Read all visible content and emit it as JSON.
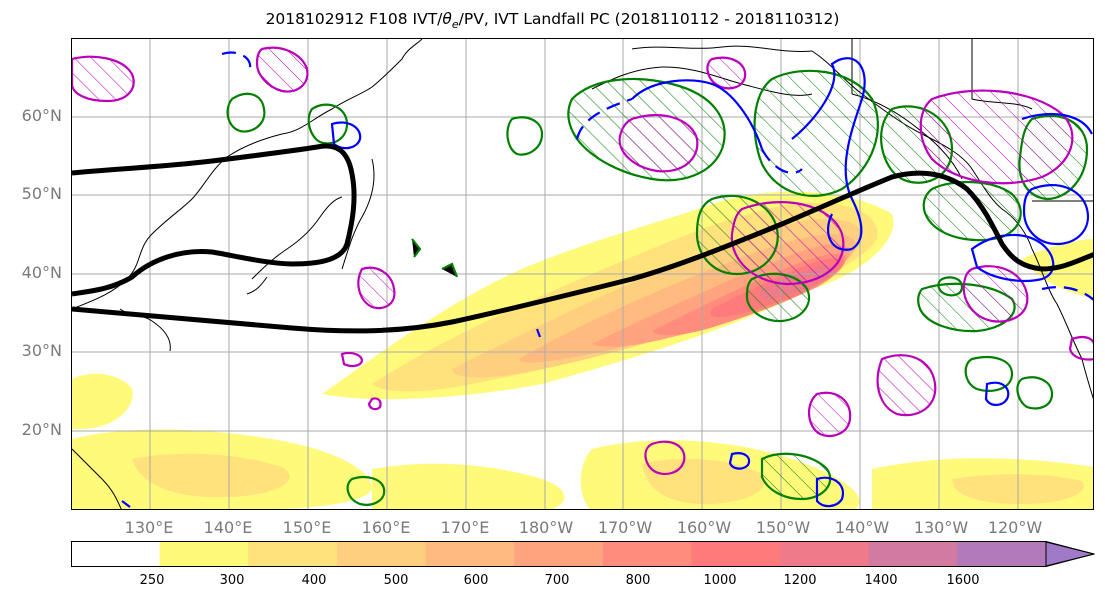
{
  "title": {
    "prefix": "2018102912 F108 IVT/",
    "theta": "θ",
    "theta_sub": "e",
    "suffix": "/PV, IVT Landfall PC (2018110112 - 2018110312)"
  },
  "lat_labels": [
    "60°N",
    "50°N",
    "40°N",
    "30°N",
    "20°N"
  ],
  "lon_labels": [
    "130°E",
    "140°E",
    "150°E",
    "160°E",
    "170°E",
    "180°W",
    "170°W",
    "160°W",
    "150°W",
    "140°W",
    "130°W",
    "120°W"
  ],
  "colorbar": {
    "labels": [
      "250",
      "300",
      "400",
      "500",
      "600",
      "700",
      "800",
      "1000",
      "1200",
      "1400",
      "1600"
    ],
    "colors": [
      "#ffffff",
      "#fffa7a",
      "#ffe27c",
      "#ffcf80",
      "#ffba80",
      "#ffa47e",
      "#ff8c7c",
      "#ff7a7a",
      "#ee7a8a",
      "#d27aa0",
      "#b27ab8",
      "#a07ac8"
    ],
    "extend": "max"
  },
  "colors": {
    "ivt_fill": "#ff8c7c",
    "landfall_pc_contour": "#000000",
    "pv_contour": "#0000ff",
    "theta_e_contour": "#008000",
    "hatched_contour": "#bb00bb",
    "gridline": "#aaaaaa",
    "coastline": "#000000"
  }
}
